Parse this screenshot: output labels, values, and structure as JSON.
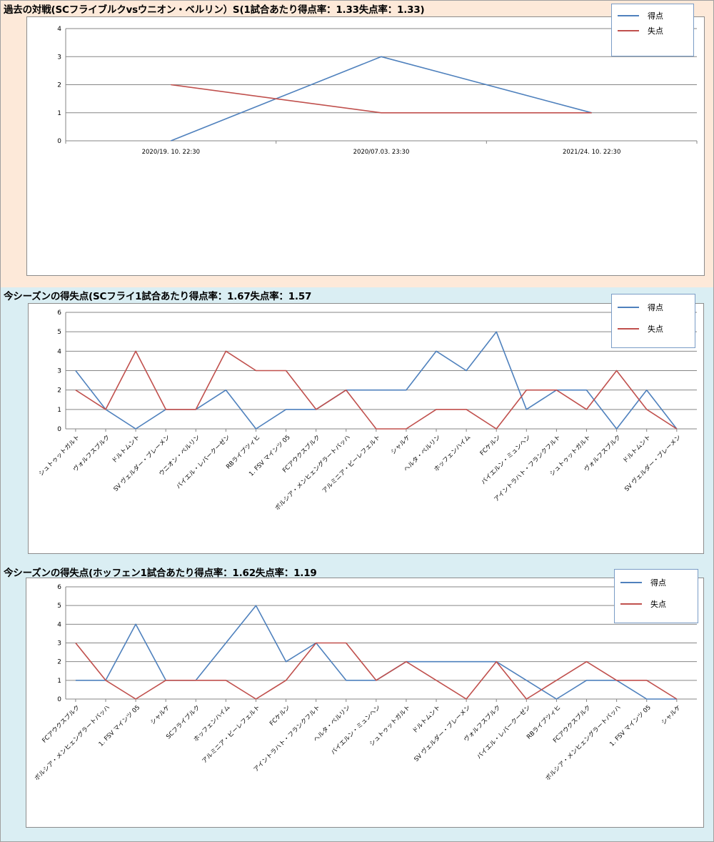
{
  "colors": {
    "score": "#4f81bd",
    "conceded": "#c0504d"
  },
  "legend": {
    "score_label": "得点",
    "conceded_label": "失点"
  },
  "chart_data": [
    {
      "type": "line",
      "title": "過去の対戦(SCフライブルクvsウニオン・ベルリン）S(1試合あたり得点率：1.33失点率：1.33)",
      "categories": [
        "2020/19. 10. 22:30",
        "2020/07.03. 23:30",
        "2021/24. 10. 22:30"
      ],
      "series": [
        {
          "name": "得点",
          "values": [
            0,
            3,
            1
          ]
        },
        {
          "name": "失点",
          "values": [
            2,
            1,
            1
          ]
        }
      ],
      "ylim": [
        0,
        4
      ],
      "yticks": [
        0,
        1,
        2,
        3,
        4
      ],
      "xlabel": "",
      "ylabel": "",
      "grid": true,
      "legend_position": "top-right"
    },
    {
      "type": "line",
      "title": "今シーズンの得失点(SCフライ1試合あたり得点率：1.67失点率：1.57",
      "categories": [
        "シュトゥットガルト",
        "ヴォルフスブルク",
        "ドルトムント",
        "SV ヴェルダー・ブレーメン",
        "ウニオン・ベルリン",
        "バイエル・レバークーゼン",
        "RBライプツィヒ",
        "1. FSV マインツ 05",
        "FCアウクスブルク",
        "ボルシア・メンヒェングラートバッハ",
        "アルミニア・ビーレフェルト",
        "シャルケ",
        "ヘルタ・ベルリン",
        "ホッフェンハイム",
        "FCケルン",
        "バイエルン・ミュンヘン",
        "アイントラハト・フランクフルト",
        "シュトゥットガルト",
        "ヴォルフスブルク",
        "ドルトムント",
        "SV ヴェルダー・ブレーメン"
      ],
      "series": [
        {
          "name": "得点",
          "values": [
            3,
            1,
            0,
            1,
            1,
            2,
            0,
            1,
            1,
            2,
            2,
            2,
            4,
            3,
            5,
            1,
            2,
            2,
            0,
            2,
            0
          ]
        },
        {
          "name": "失点",
          "values": [
            2,
            1,
            4,
            1,
            1,
            4,
            3,
            3,
            1,
            2,
            0,
            0,
            1,
            1,
            0,
            2,
            2,
            1,
            3,
            1,
            0
          ]
        }
      ],
      "ylim": [
        0,
        6
      ],
      "yticks": [
        0,
        1,
        2,
        3,
        4,
        5,
        6
      ],
      "xlabel": "",
      "ylabel": "",
      "grid": true,
      "legend_position": "top-right"
    },
    {
      "type": "line",
      "title": "今シーズンの得失点(ホッフェン1試合あたり得点率：1.62失点率：1.19",
      "categories": [
        "FCアウクスブルク",
        "ボルシア・メンヒェングラートバッハ",
        "1. FSV マインツ 05",
        "シャルケ",
        "SCフライブルク",
        "ホッフェンハイム",
        "アルミニア・ビーレフェルト",
        "FCケルン",
        "アイントラハト・フランクフルト",
        "ヘルタ・ベルリン",
        "バイエルン・ミュンヘン",
        "シュトゥットガルト",
        "ドルトムント",
        "SV ヴェルダー・ブレーメン",
        "ヴォルフスブルク",
        "バイエル・レバークーゼン",
        "RBライプツィヒ",
        "FCアウクスブルク",
        "ボルシア・メンヒェングラートバッハ",
        "1. FSV マインツ 05",
        "シャルケ"
      ],
      "series": [
        {
          "name": "得点",
          "values": [
            1,
            1,
            4,
            1,
            1,
            3,
            5,
            2,
            3,
            1,
            1,
            2,
            2,
            2,
            2,
            1,
            0,
            1,
            1,
            0,
            0
          ]
        },
        {
          "name": "失点",
          "values": [
            3,
            1,
            0,
            1,
            1,
            1,
            0,
            1,
            3,
            3,
            1,
            2,
            1,
            0,
            2,
            0,
            1,
            2,
            1,
            1,
            0
          ]
        }
      ],
      "ylim": [
        0,
        6
      ],
      "yticks": [
        0,
        1,
        2,
        3,
        4,
        5,
        6
      ],
      "xlabel": "",
      "ylabel": "",
      "grid": true,
      "legend_position": "top-right"
    }
  ]
}
